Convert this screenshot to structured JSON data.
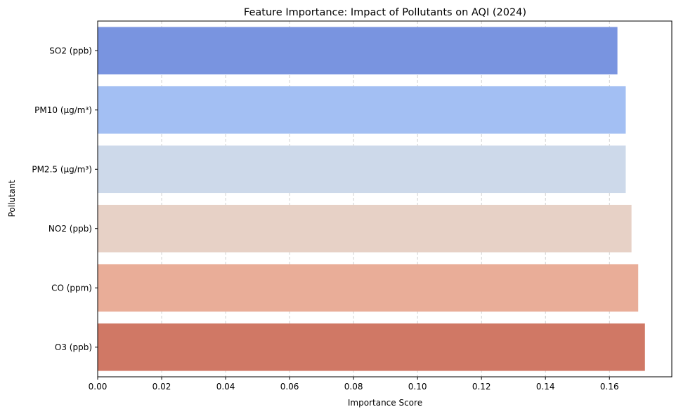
{
  "chart_data": {
    "type": "bar",
    "orientation": "horizontal",
    "title": "Feature Importance: Impact of Pollutants on AQI (2024)",
    "xlabel": "Importance Score",
    "ylabel": "Pollutant",
    "categories": [
      "SO2 (ppb)",
      "PM10 (µg/m³)",
      "PM2.5 (µg/m³)",
      "NO2 (ppb)",
      "CO (ppm)",
      "O3 (ppb)"
    ],
    "values": [
      0.1625,
      0.1651,
      0.1651,
      0.1669,
      0.169,
      0.1711
    ],
    "colors": [
      "#7994e0",
      "#a3bff3",
      "#cdd9ea",
      "#e7d1c6",
      "#e9ad98",
      "#d07865"
    ],
    "xlim": [
      0,
      0.1795
    ],
    "xticks": [
      0.0,
      0.02,
      0.04,
      0.06,
      0.08,
      0.1,
      0.12,
      0.14,
      0.16
    ],
    "xtick_labels": [
      "0.00",
      "0.02",
      "0.04",
      "0.06",
      "0.08",
      "0.10",
      "0.12",
      "0.14",
      "0.16"
    ],
    "grid": {
      "x": true,
      "y": false,
      "style": "dashed"
    }
  }
}
